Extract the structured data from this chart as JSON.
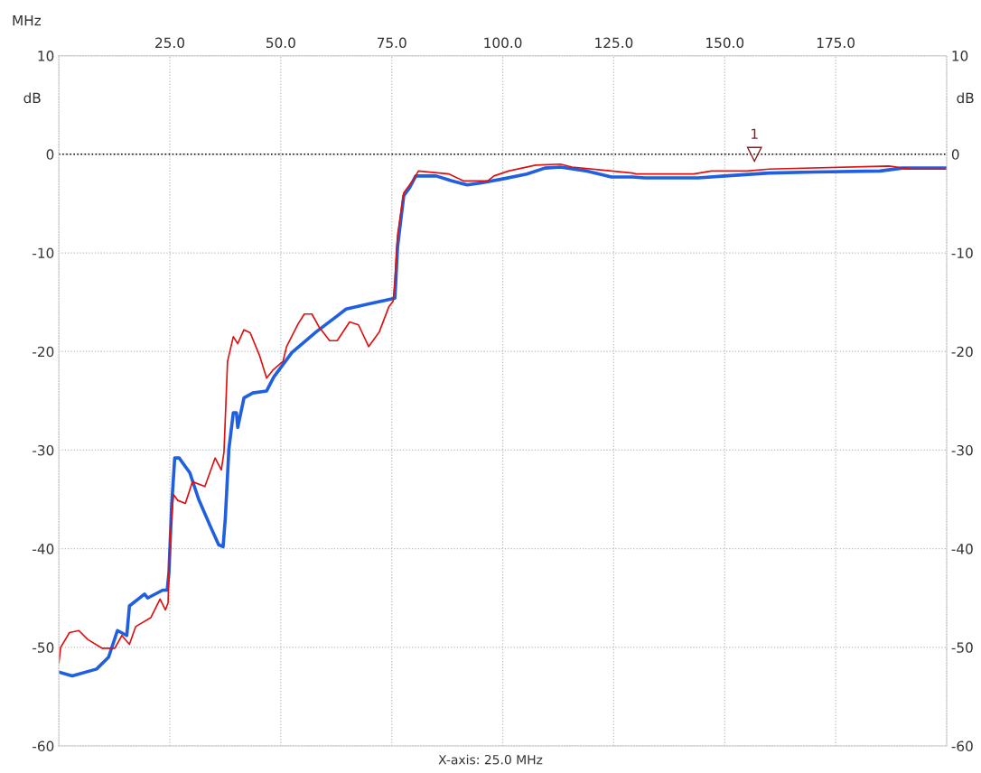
{
  "chart_data": {
    "type": "line",
    "xlabel": "MHz",
    "ylabel": "dB",
    "y2label": "dB",
    "xlim": [
      0,
      200
    ],
    "xticks": [
      {
        "value": 25,
        "label": "25.0"
      },
      {
        "value": 50,
        "label": "50.0"
      },
      {
        "value": 75,
        "label": "75.0"
      },
      {
        "value": 100,
        "label": "100.0"
      },
      {
        "value": 125,
        "label": "125.0"
      },
      {
        "value": 150,
        "label": "150.0"
      },
      {
        "value": 175,
        "label": "175.0"
      }
    ],
    "ylim": [
      -60,
      10
    ],
    "yticks": [
      -60,
      -50,
      -40,
      -30,
      -20,
      -10,
      0,
      10
    ],
    "y2lim": [
      -60,
      10
    ],
    "y2ticks": [
      -60,
      -50,
      -40,
      -30,
      -20,
      -10,
      0,
      10
    ],
    "grid": true,
    "legend": false,
    "line_style": "solid",
    "marker": "none",
    "ref_lines": [
      {
        "axis": "y",
        "value": 0,
        "color": "#000000",
        "line_style": "dotted"
      }
    ],
    "annotations": [
      {
        "text": "1",
        "x": 156.7,
        "y": 0
      },
      "X-axis: 25.0 MHz"
    ],
    "series": [
      {
        "color": "#1f5fe0",
        "x": [
          0,
          3,
          8.5,
          11.2,
          13.2,
          15.3,
          15.9,
          19.3,
          20,
          23.4,
          24.4,
          24.8,
          25.4,
          26.1,
          27.1,
          29.5,
          31.5,
          34.2,
          36,
          37,
          37.5,
          38.3,
          39.3,
          40,
          40.3,
          41.7,
          43.7,
          46.8,
          48.4,
          52.5,
          58,
          62.7,
          64.7,
          69.6,
          73.6,
          75.7,
          76.3,
          77.7,
          79,
          80.4,
          85,
          88.5,
          92,
          95.2,
          100,
          105.4,
          109.5,
          113,
          119,
          124.5,
          129.2,
          132,
          144,
          150,
          160,
          170,
          185,
          190,
          200
        ],
        "values": [
          -52.5,
          -52.9,
          -52.2,
          -51,
          -48.3,
          -48.8,
          -45.8,
          -44.6,
          -45,
          -44.2,
          -44.2,
          -42.4,
          -35.7,
          -30.8,
          -30.8,
          -32.3,
          -35,
          -37.8,
          -39.6,
          -39.8,
          -36.9,
          -29.9,
          -26.2,
          -26.2,
          -27.7,
          -24.7,
          -24.2,
          -24,
          -22.6,
          -20.1,
          -18,
          -16.4,
          -15.7,
          -15.2,
          -14.8,
          -14.6,
          -9.4,
          -4.2,
          -3.4,
          -2.2,
          -2.2,
          -2.7,
          -3.1,
          -2.9,
          -2.5,
          -2,
          -1.4,
          -1.3,
          -1.7,
          -2.3,
          -2.3,
          -2.4,
          -2.4,
          -2.2,
          -1.9,
          -1.8,
          -1.7,
          -1.4,
          -1.4
        ]
      },
      {
        "color": "#e01010",
        "x": [
          0,
          0.4,
          2.4,
          4.5,
          6.5,
          9.8,
          12.6,
          14.2,
          15.9,
          17.3,
          20.7,
          22.8,
          24,
          24.6,
          25,
          25.8,
          26.8,
          28.5,
          30.1,
          32.9,
          35.2,
          36.6,
          37.2,
          38,
          39.3,
          40.3,
          41.7,
          43.1,
          45.2,
          46.8,
          48.2,
          50.5,
          51.3,
          53.9,
          55.3,
          57,
          58.6,
          61,
          62.7,
          65.5,
          67.5,
          69.8,
          72.2,
          74.3,
          75.3,
          75.7,
          76.3,
          77.7,
          79.7,
          81,
          87.9,
          91.1,
          96.6,
          98,
          101.3,
          107.4,
          113,
          115.6,
          122.5,
          129.2,
          130,
          137,
          143,
          147,
          155,
          160,
          187,
          192,
          200
        ],
        "values": [
          -51.6,
          -50,
          -48.5,
          -48.3,
          -49.2,
          -50.1,
          -50.1,
          -48.8,
          -49.7,
          -47.9,
          -47,
          -45.1,
          -46.2,
          -45.5,
          -39.4,
          -34.5,
          -35.1,
          -35.4,
          -33.2,
          -33.7,
          -30.8,
          -32,
          -30.2,
          -21,
          -18.5,
          -19.2,
          -17.8,
          -18.1,
          -20.4,
          -22.7,
          -21.9,
          -21,
          -19.5,
          -17.2,
          -16.2,
          -16.2,
          -17.5,
          -18.9,
          -18.9,
          -17,
          -17.3,
          -19.5,
          -18,
          -15.5,
          -14.9,
          -12.8,
          -8.2,
          -3.9,
          -2.7,
          -1.7,
          -2,
          -2.7,
          -2.7,
          -2.2,
          -1.7,
          -1.1,
          -1,
          -1.3,
          -1.6,
          -1.9,
          -2,
          -2,
          -2,
          -1.7,
          -1.7,
          -1.5,
          -1.2,
          -1.5,
          -1.5
        ]
      }
    ]
  }
}
